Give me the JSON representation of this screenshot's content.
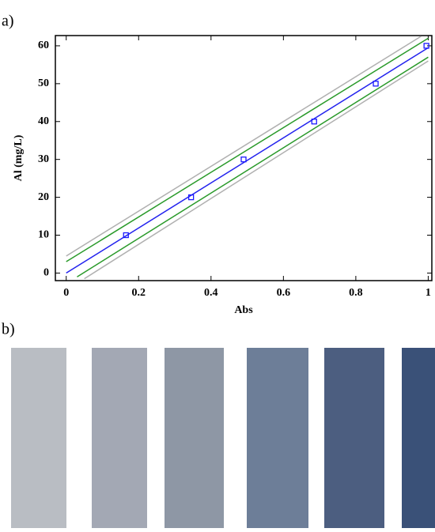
{
  "panel_labels": [
    "a)",
    "b)"
  ],
  "chart_data": {
    "type": "scatter",
    "xlabel": "Abs",
    "ylabel": "Al (mg/L)",
    "xlim": [
      -0.03,
      1.01
    ],
    "ylim": [
      -2,
      62.7
    ],
    "xticks": [
      0,
      0.2,
      0.4,
      0.6,
      0.8,
      1
    ],
    "yticks": [
      0,
      10,
      20,
      30,
      40,
      50,
      60
    ],
    "series": [
      {
        "color": "#1a1aff",
        "marker": "square",
        "x": [
          0.165,
          0.345,
          0.49,
          0.685,
          0.855,
          0.995
        ],
        "values": [
          10,
          20,
          30,
          40,
          50,
          60
        ]
      },
      {
        "color": "#2222ee",
        "line": true,
        "x": [
          0,
          1
        ],
        "values": [
          0,
          59.5
        ]
      },
      {
        "color": "#2a9a2a",
        "line": true,
        "x": [
          0,
          1
        ],
        "values": [
          3,
          62
        ]
      },
      {
        "color": "#2a9a2a",
        "line": true,
        "x": [
          0.03,
          1
        ],
        "values": [
          -1,
          57
        ]
      },
      {
        "color": "#b0b0b0",
        "line": true,
        "x": [
          0,
          0.98
        ],
        "values": [
          4.5,
          62.5
        ]
      },
      {
        "color": "#b0b0b0",
        "line": true,
        "x": [
          0.05,
          1
        ],
        "values": [
          -1.5,
          56
        ]
      }
    ]
  }
}
